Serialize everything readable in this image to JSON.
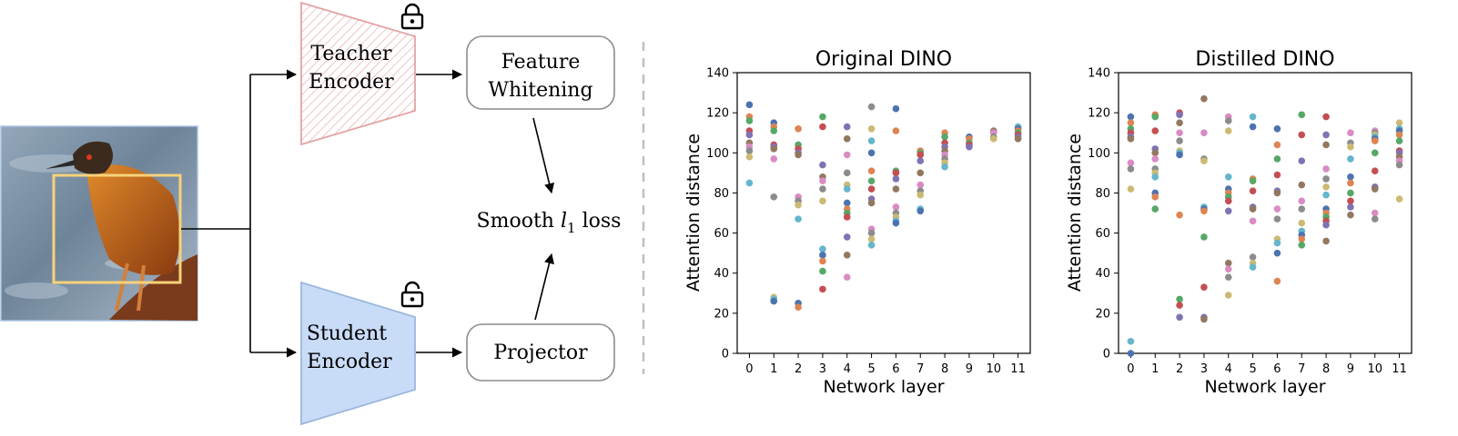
{
  "diagram": {
    "teacher_label": [
      "Teacher",
      "Encoder"
    ],
    "student_label": [
      "Student",
      "Encoder"
    ],
    "whitening_label": [
      "Feature",
      "Whitening"
    ],
    "projector_label": "Projector",
    "loss_label": {
      "prefix": "Smooth ",
      "var": "l",
      "sub": "1",
      "suffix": " loss"
    },
    "icons": {
      "teacher_lock": "lock-closed-icon",
      "student_lock": "lock-open-icon"
    },
    "colors": {
      "teacher": "#e8a9ab",
      "student": "#c9dcf7",
      "student_stroke": "#9bb7de",
      "crop_box": "#f7d27a"
    }
  },
  "chart_data": [
    {
      "type": "scatter",
      "title": "Original DINO",
      "xlabel": "Network layer",
      "ylabel": "Attention distance",
      "x_ticks": [
        "0",
        "1",
        "2",
        "3",
        "4",
        "5",
        "6",
        "7",
        "8",
        "9",
        "10",
        "11"
      ],
      "y_ticks": [
        "0",
        "20",
        "40",
        "60",
        "80",
        "100",
        "120",
        "140"
      ],
      "xlim": [
        -0.5,
        11.5
      ],
      "ylim": [
        0,
        140
      ],
      "points": [
        [
          0,
          124
        ],
        [
          0,
          118
        ],
        [
          0,
          116
        ],
        [
          0,
          111
        ],
        [
          0,
          109
        ],
        [
          0,
          105
        ],
        [
          0,
          103
        ],
        [
          0,
          101
        ],
        [
          0,
          98
        ],
        [
          0,
          85
        ],
        [
          1,
          115
        ],
        [
          1,
          113
        ],
        [
          1,
          111
        ],
        [
          1,
          104
        ],
        [
          1,
          103
        ],
        [
          1,
          102
        ],
        [
          1,
          97
        ],
        [
          1,
          78
        ],
        [
          1,
          28
        ],
        [
          1,
          27
        ],
        [
          1,
          26
        ],
        [
          2,
          112
        ],
        [
          2,
          104
        ],
        [
          2,
          102
        ],
        [
          2,
          100
        ],
        [
          2,
          99
        ],
        [
          2,
          78
        ],
        [
          2,
          76
        ],
        [
          2,
          74
        ],
        [
          2,
          67
        ],
        [
          2,
          25
        ],
        [
          2,
          23
        ],
        [
          3,
          118
        ],
        [
          3,
          113
        ],
        [
          3,
          94
        ],
        [
          3,
          88
        ],
        [
          3,
          86
        ],
        [
          3,
          82
        ],
        [
          3,
          76
        ],
        [
          3,
          52
        ],
        [
          3,
          49
        ],
        [
          3,
          46
        ],
        [
          3,
          41
        ],
        [
          3,
          32
        ],
        [
          4,
          113
        ],
        [
          4,
          107
        ],
        [
          4,
          99
        ],
        [
          4,
          90
        ],
        [
          4,
          84
        ],
        [
          4,
          82
        ],
        [
          4,
          75
        ],
        [
          4,
          72
        ],
        [
          4,
          70
        ],
        [
          4,
          68
        ],
        [
          4,
          58
        ],
        [
          4,
          49
        ],
        [
          4,
          38
        ],
        [
          5,
          123
        ],
        [
          5,
          112
        ],
        [
          5,
          106
        ],
        [
          5,
          100
        ],
        [
          5,
          91
        ],
        [
          5,
          86
        ],
        [
          5,
          82
        ],
        [
          5,
          77
        ],
        [
          5,
          75
        ],
        [
          5,
          62
        ],
        [
          5,
          60
        ],
        [
          5,
          57
        ],
        [
          5,
          54
        ],
        [
          6,
          122
        ],
        [
          6,
          111
        ],
        [
          6,
          91
        ],
        [
          6,
          90
        ],
        [
          6,
          87
        ],
        [
          6,
          82
        ],
        [
          6,
          73
        ],
        [
          6,
          70
        ],
        [
          6,
          68
        ],
        [
          6,
          66
        ],
        [
          6,
          65
        ],
        [
          7,
          101
        ],
        [
          7,
          100
        ],
        [
          7,
          99
        ],
        [
          7,
          96
        ],
        [
          7,
          90
        ],
        [
          7,
          84
        ],
        [
          7,
          81
        ],
        [
          7,
          79
        ],
        [
          7,
          72
        ],
        [
          7,
          71
        ],
        [
          8,
          110
        ],
        [
          8,
          108
        ],
        [
          8,
          105
        ],
        [
          8,
          103
        ],
        [
          8,
          101
        ],
        [
          8,
          99
        ],
        [
          8,
          97
        ],
        [
          8,
          95
        ],
        [
          8,
          93
        ],
        [
          9,
          108
        ],
        [
          9,
          107
        ],
        [
          9,
          105
        ],
        [
          9,
          104
        ],
        [
          9,
          103
        ],
        [
          10,
          111
        ],
        [
          10,
          110
        ],
        [
          10,
          108
        ],
        [
          10,
          107
        ],
        [
          11,
          113
        ],
        [
          11,
          112
        ],
        [
          11,
          111
        ],
        [
          11,
          110
        ],
        [
          11,
          109
        ],
        [
          11,
          108
        ],
        [
          11,
          107
        ]
      ]
    },
    {
      "type": "scatter",
      "title": "Distilled DINO",
      "xlabel": "Network layer",
      "ylabel": "Attention distance",
      "x_ticks": [
        "0",
        "1",
        "2",
        "3",
        "4",
        "5",
        "6",
        "7",
        "8",
        "9",
        "10",
        "11"
      ],
      "y_ticks": [
        "0",
        "20",
        "40",
        "60",
        "80",
        "100",
        "120",
        "140"
      ],
      "xlim": [
        -0.5,
        11.5
      ],
      "ylim": [
        0,
        140
      ],
      "points": [
        [
          0,
          118
        ],
        [
          0,
          115
        ],
        [
          0,
          112
        ],
        [
          0,
          110
        ],
        [
          0,
          108
        ],
        [
          0,
          107
        ],
        [
          0,
          95
        ],
        [
          0,
          92
        ],
        [
          0,
          82
        ],
        [
          0,
          6
        ],
        [
          0,
          0
        ],
        [
          1,
          119
        ],
        [
          1,
          118
        ],
        [
          1,
          111
        ],
        [
          1,
          102
        ],
        [
          1,
          100
        ],
        [
          1,
          97
        ],
        [
          1,
          92
        ],
        [
          1,
          90
        ],
        [
          1,
          88
        ],
        [
          1,
          80
        ],
        [
          1,
          78
        ],
        [
          1,
          72
        ],
        [
          2,
          120
        ],
        [
          2,
          119
        ],
        [
          2,
          115
        ],
        [
          2,
          110
        ],
        [
          2,
          106
        ],
        [
          2,
          101
        ],
        [
          2,
          100
        ],
        [
          2,
          99
        ],
        [
          2,
          69
        ],
        [
          2,
          27
        ],
        [
          2,
          24
        ],
        [
          2,
          18
        ],
        [
          3,
          127
        ],
        [
          3,
          110
        ],
        [
          3,
          97
        ],
        [
          3,
          96
        ],
        [
          3,
          73
        ],
        [
          3,
          72
        ],
        [
          3,
          71
        ],
        [
          3,
          58
        ],
        [
          3,
          33
        ],
        [
          3,
          18
        ],
        [
          3,
          17
        ],
        [
          4,
          118
        ],
        [
          4,
          116
        ],
        [
          4,
          111
        ],
        [
          4,
          88
        ],
        [
          4,
          82
        ],
        [
          4,
          80
        ],
        [
          4,
          78
        ],
        [
          4,
          76
        ],
        [
          4,
          71
        ],
        [
          4,
          45
        ],
        [
          4,
          42
        ],
        [
          4,
          38
        ],
        [
          4,
          29
        ],
        [
          5,
          118
        ],
        [
          5,
          113
        ],
        [
          5,
          87
        ],
        [
          5,
          86
        ],
        [
          5,
          81
        ],
        [
          5,
          73
        ],
        [
          5,
          72
        ],
        [
          5,
          66
        ],
        [
          5,
          48
        ],
        [
          5,
          45
        ],
        [
          5,
          43
        ],
        [
          6,
          112
        ],
        [
          6,
          104
        ],
        [
          6,
          97
        ],
        [
          6,
          89
        ],
        [
          6,
          81
        ],
        [
          6,
          80
        ],
        [
          6,
          72
        ],
        [
          6,
          67
        ],
        [
          6,
          57
        ],
        [
          6,
          55
        ],
        [
          6,
          50
        ],
        [
          6,
          36
        ],
        [
          7,
          119
        ],
        [
          7,
          109
        ],
        [
          7,
          96
        ],
        [
          7,
          84
        ],
        [
          7,
          76
        ],
        [
          7,
          72
        ],
        [
          7,
          65
        ],
        [
          7,
          61
        ],
        [
          7,
          59
        ],
        [
          7,
          57
        ],
        [
          7,
          54
        ],
        [
          8,
          118
        ],
        [
          8,
          109
        ],
        [
          8,
          104
        ],
        [
          8,
          92
        ],
        [
          8,
          87
        ],
        [
          8,
          83
        ],
        [
          8,
          79
        ],
        [
          8,
          72
        ],
        [
          8,
          70
        ],
        [
          8,
          68
        ],
        [
          8,
          66
        ],
        [
          8,
          64
        ],
        [
          8,
          56
        ],
        [
          9,
          110
        ],
        [
          9,
          105
        ],
        [
          9,
          103
        ],
        [
          9,
          97
        ],
        [
          9,
          88
        ],
        [
          9,
          85
        ],
        [
          9,
          80
        ],
        [
          9,
          76
        ],
        [
          9,
          73
        ],
        [
          9,
          69
        ],
        [
          10,
          111
        ],
        [
          10,
          110
        ],
        [
          10,
          109
        ],
        [
          10,
          108
        ],
        [
          10,
          107
        ],
        [
          10,
          106
        ],
        [
          10,
          100
        ],
        [
          10,
          91
        ],
        [
          10,
          83
        ],
        [
          10,
          82
        ],
        [
          10,
          70
        ],
        [
          10,
          67
        ],
        [
          11,
          115
        ],
        [
          11,
          112
        ],
        [
          11,
          111
        ],
        [
          11,
          109
        ],
        [
          11,
          106
        ],
        [
          11,
          101
        ],
        [
          11,
          100
        ],
        [
          11,
          98
        ],
        [
          11,
          96
        ],
        [
          11,
          94
        ],
        [
          11,
          77
        ]
      ]
    }
  ],
  "palette": [
    "#4c72b0",
    "#dd8452",
    "#55a868",
    "#c44e52",
    "#8172b3",
    "#937860",
    "#da8bc3",
    "#8c8c8c",
    "#ccb974",
    "#64b5cd"
  ]
}
